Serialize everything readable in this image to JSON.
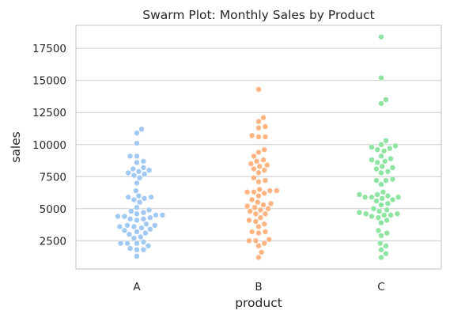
{
  "chart_data": {
    "type": "swarm",
    "title": "Swarm Plot: Monthly Sales by Product",
    "xlabel": "product",
    "ylabel": "sales",
    "categories": [
      "A",
      "B",
      "C"
    ],
    "yticks": [
      2500,
      5000,
      7500,
      10000,
      12500,
      15000,
      17500
    ],
    "ylim": [
      300,
      19300
    ],
    "grid": "horizontal",
    "colors": {
      "A": "#a1c9f4",
      "B": "#ffb482",
      "C": "#8de5a1"
    },
    "values": {
      "A": [
        11200,
        10900,
        10100,
        9100,
        9100,
        8700,
        8600,
        8200,
        8100,
        8000,
        7900,
        7800,
        7700,
        7600,
        7400,
        7000,
        6400,
        6000,
        5900,
        5900,
        5800,
        5700,
        5500,
        5100,
        4900,
        4800,
        4700,
        4600,
        4500,
        4500,
        4400,
        4400,
        4300,
        4200,
        4200,
        4100,
        3800,
        3700,
        3700,
        3600,
        3600,
        3500,
        3400,
        3300,
        3200,
        3100,
        3000,
        2800,
        2700,
        2400,
        2300,
        2300,
        2300,
        2100,
        1900,
        1800,
        1800,
        1300
      ],
      "B": [
        14300,
        12100,
        11800,
        11400,
        11300,
        10700,
        10600,
        10600,
        9600,
        9400,
        9100,
        8800,
        8700,
        8500,
        8400,
        8300,
        8100,
        8000,
        7800,
        7400,
        7200,
        7100,
        6500,
        6400,
        6400,
        6300,
        6300,
        6200,
        6000,
        5700,
        5500,
        5400,
        5300,
        5200,
        5100,
        5000,
        4900,
        4800,
        4600,
        4600,
        4300,
        4100,
        4000,
        3800,
        3600,
        3200,
        3200,
        3100,
        2600,
        2500,
        2500,
        2300,
        2100,
        1600,
        1200
      ],
      "C": [
        18400,
        15200,
        13500,
        13200,
        10300,
        10000,
        9900,
        9800,
        9700,
        9600,
        9500,
        9100,
        8900,
        8800,
        8700,
        8600,
        8300,
        8200,
        8100,
        7900,
        7800,
        7300,
        7200,
        7200,
        6900,
        6300,
        6100,
        6100,
        6000,
        5900,
        5900,
        5900,
        5800,
        5700,
        5600,
        5400,
        5300,
        5000,
        4900,
        4800,
        4700,
        4600,
        4600,
        4500,
        4500,
        4400,
        4300,
        4100,
        3900,
        3300,
        3100,
        2900,
        2300,
        2100,
        1800,
        1500,
        1200
      ]
    }
  }
}
